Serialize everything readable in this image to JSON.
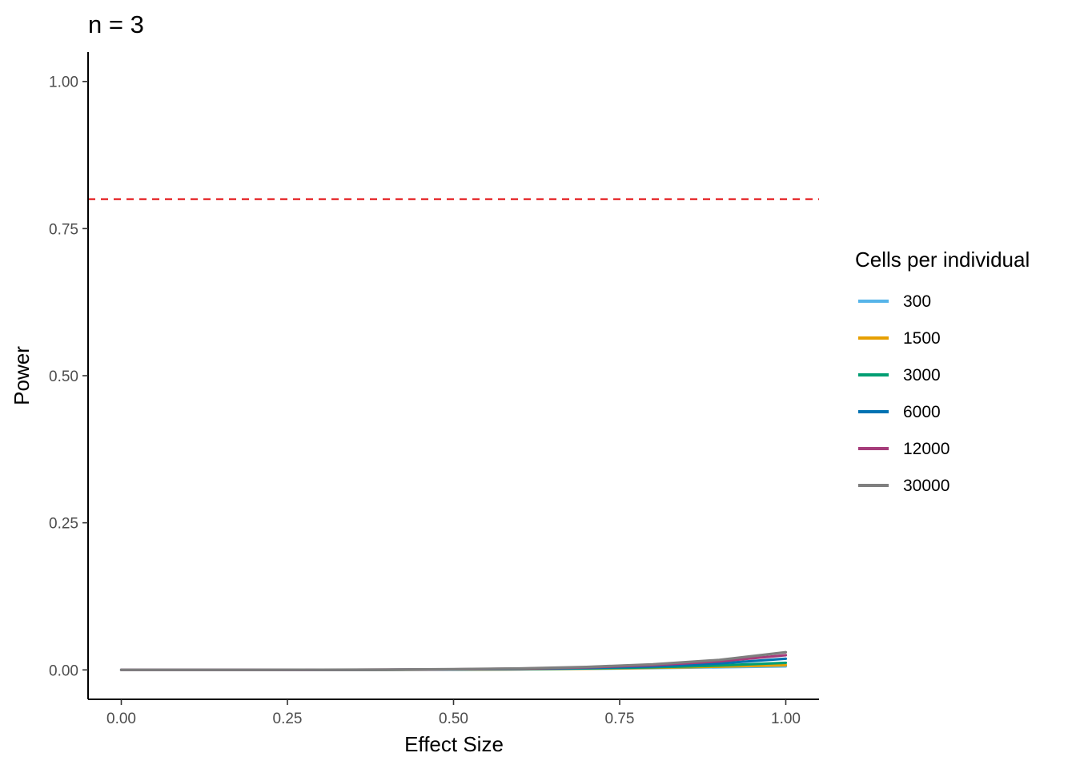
{
  "chart_data": {
    "type": "line",
    "title": "n = 3",
    "xlabel": "Effect Size",
    "ylabel": "Power",
    "xlim": [
      -0.05,
      1.05
    ],
    "ylim": [
      -0.05,
      1.05
    ],
    "x_ticks": [
      0.0,
      0.25,
      0.5,
      0.75,
      1.0
    ],
    "x_tick_labels": [
      "0.00",
      "0.25",
      "0.50",
      "0.75",
      "1.00"
    ],
    "y_ticks": [
      0.0,
      0.25,
      0.5,
      0.75,
      1.0
    ],
    "y_tick_labels": [
      "0.00",
      "0.25",
      "0.50",
      "0.75",
      "1.00"
    ],
    "grid": false,
    "reference_line": {
      "y": 0.8,
      "color": "#e41a1c",
      "style": "dashed"
    },
    "legend": {
      "title": "Cells per individual",
      "position": "right"
    },
    "x": [
      0.0,
      0.1,
      0.2,
      0.3,
      0.4,
      0.5,
      0.6,
      0.7,
      0.8,
      0.9,
      1.0
    ],
    "series": [
      {
        "name": "300",
        "color": "#56B4E9",
        "values": [
          0,
          0,
          0,
          0,
          0.0002,
          0.0005,
          0.001,
          0.0018,
          0.003,
          0.0045,
          0.006
        ]
      },
      {
        "name": "1500",
        "color": "#E69F00",
        "values": [
          0,
          0,
          0,
          0,
          0.0002,
          0.0005,
          0.001,
          0.002,
          0.0035,
          0.0055,
          0.008
        ]
      },
      {
        "name": "3000",
        "color": "#009E73",
        "values": [
          0,
          0,
          0,
          0.0001,
          0.0003,
          0.0006,
          0.0013,
          0.0025,
          0.0045,
          0.0075,
          0.012
        ]
      },
      {
        "name": "6000",
        "color": "#0072B2",
        "values": [
          0,
          0,
          0,
          0.0001,
          0.0003,
          0.0008,
          0.0017,
          0.0033,
          0.006,
          0.011,
          0.019
        ]
      },
      {
        "name": "12000",
        "color": "#A63C7A",
        "values": [
          0,
          0,
          0,
          0.0001,
          0.0004,
          0.001,
          0.0021,
          0.0042,
          0.008,
          0.0145,
          0.025
        ]
      },
      {
        "name": "30000",
        "color": "#7f7f7f",
        "values": [
          0,
          0,
          0,
          0.0002,
          0.0005,
          0.0012,
          0.0025,
          0.005,
          0.0095,
          0.017,
          0.03
        ]
      }
    ]
  }
}
